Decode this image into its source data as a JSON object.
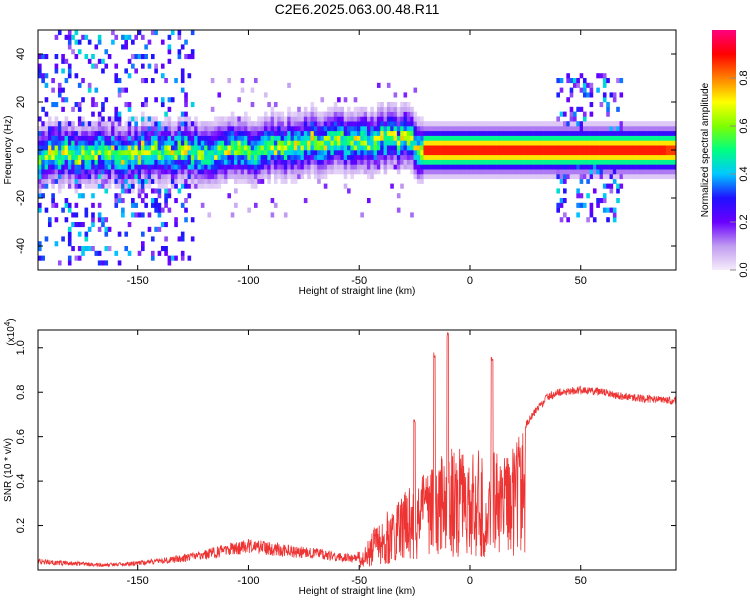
{
  "figure": {
    "title": "C2E6.2025.063.00.48.R11"
  },
  "chart_data": [
    {
      "type": "heatmap",
      "title": "C2E6.2025.063.00.48.R11",
      "xlabel": "Height of straight line (km)",
      "ylabel": "Frequency (Hz)",
      "xlim": [
        -195,
        93
      ],
      "ylim": [
        -50,
        50
      ],
      "x_ticks": [
        -150,
        -100,
        -50,
        0,
        50
      ],
      "y_ticks": [
        -40,
        -20,
        0,
        20,
        40
      ],
      "colorbar": {
        "label": "Normalized spectral amplitude",
        "range": [
          0,
          1
        ],
        "ticks": [
          0.0,
          0.2,
          0.4,
          0.6,
          0.8
        ],
        "tick_labels": [
          "0.0",
          "0.2",
          "0.4",
          "0.6",
          "0.8"
        ],
        "colors": [
          "#f6ecfb",
          "#c09cf0",
          "#6a00ff",
          "#1f10ff",
          "#00c8ff",
          "#00ff80",
          "#7fff00",
          "#ffff00",
          "#ff8000",
          "#ff0000",
          "#ff0080"
        ]
      },
      "ridge_center_hz": [
        {
          "x": -195,
          "y": -2
        },
        {
          "x": -150,
          "y": -1
        },
        {
          "x": -100,
          "y": 0
        },
        {
          "x": -75,
          "y": 3
        },
        {
          "x": -50,
          "y": 4
        },
        {
          "x": -30,
          "y": 5
        },
        {
          "x": -22,
          "y": 0
        },
        {
          "x": 0,
          "y": 0
        },
        {
          "x": 93,
          "y": 0
        }
      ],
      "high_amplitude_band_km": [
        -22,
        93
      ],
      "high_amplitude_peak_km": [
        88,
        93
      ],
      "broadband_regions_km": [
        [
          -195,
          -125
        ],
        [
          38,
          68
        ]
      ]
    },
    {
      "type": "line",
      "xlabel": "Height of straight line (km)",
      "ylabel": "SNR (10 * v/v)",
      "y_multiplier": "(x10",
      "y_multiplier_exp": "4",
      "xlim": [
        -195,
        93
      ],
      "ylim": [
        0,
        1.08
      ],
      "x_ticks": [
        -150,
        -100,
        -50,
        0,
        50
      ],
      "y_ticks": [
        0.2,
        0.4,
        0.6,
        0.8,
        1.0
      ],
      "y_tick_labels": [
        "0.2",
        "0.4",
        "0.6",
        "0.8",
        "1.0"
      ],
      "series": [
        {
          "color": "#ee3333",
          "x": [
            -195,
            -180,
            -165,
            -150,
            -135,
            -120,
            -110,
            -100,
            -90,
            -80,
            -70,
            -60,
            -52,
            -47,
            -43,
            -40,
            -35,
            -30,
            -25,
            -20,
            -15,
            -10,
            -5,
            0,
            3,
            5,
            8,
            10,
            15,
            20,
            25,
            30,
            35,
            40,
            50,
            60,
            70,
            80,
            93
          ],
          "values": [
            0.05,
            0.04,
            0.03,
            0.04,
            0.06,
            0.09,
            0.12,
            0.14,
            0.13,
            0.11,
            0.1,
            0.08,
            0.07,
            0.12,
            0.2,
            0.25,
            0.3,
            0.35,
            0.4,
            0.45,
            0.5,
            0.55,
            0.55,
            0.5,
            0.6,
            0.55,
            0.3,
            0.55,
            0.55,
            0.58,
            0.65,
            0.72,
            0.78,
            0.8,
            0.81,
            0.8,
            0.78,
            0.77,
            0.76
          ],
          "peaks": [
            {
              "x": -16,
              "y": 0.98
            },
            {
              "x": -10,
              "y": 1.07
            },
            {
              "x": 10,
              "y": 0.96
            },
            {
              "x": -25,
              "y": 0.68
            }
          ]
        }
      ]
    }
  ]
}
